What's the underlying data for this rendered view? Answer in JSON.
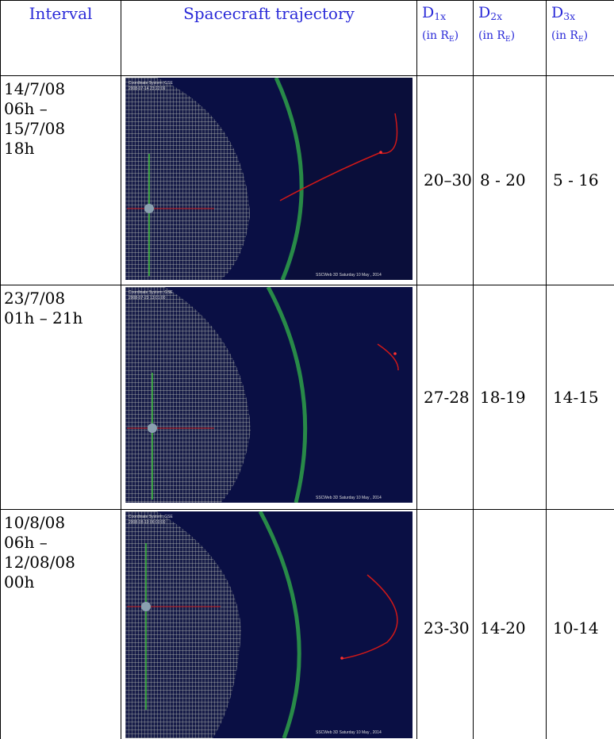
{
  "table": {
    "header": {
      "interval": "Interval",
      "trajectory": "Spacecraft trajectory",
      "distances": [
        {
          "symbol": "D",
          "subscript": "1x",
          "unit_open": "(in R",
          "unit_subscript": "E",
          "unit_close": ")"
        },
        {
          "symbol": "D",
          "subscript": "2x",
          "unit_open": "(in R",
          "unit_subscript": "E",
          "unit_close": ")"
        },
        {
          "symbol": "D",
          "subscript": "3x",
          "unit_open": "(in R",
          "unit_subscript": "E",
          "unit_close": ")"
        }
      ]
    },
    "rows": [
      {
        "interval": [
          "14/7/08",
          "06h –",
          "15/7/08",
          "18h"
        ],
        "image": {
          "coordinate_system": "Coordinate System: GSE",
          "timestamp": "2008-07-14 23:22:09",
          "footer": "SSCWeb 3D  Saturday 10 May , 2014"
        },
        "d1x": "20–30",
        "d2x": "8 - 20",
        "d3x": "5 - 16"
      },
      {
        "interval": [
          "23/7/08",
          "01h – 21h"
        ],
        "image": {
          "coordinate_system": "Coordinate System: GSE",
          "timestamp": "2008-07-23 13:01:00",
          "footer": "SSCWeb 3D  Saturday 10 May , 2014"
        },
        "d1x": "27-28",
        "d2x": "18-19",
        "d3x": "14-15"
      },
      {
        "interval": [
          "10/8/08",
          "06h –",
          "12/08/08",
          "00h"
        ],
        "image": {
          "coordinate_system": "Coordinate System: GSE",
          "timestamp": "2008-08-10 06:00:00",
          "footer": "SSCWeb 3D  Saturday 10 May , 2014"
        },
        "d1x": "23-30",
        "d2x": "14-20",
        "d3x": "10-14"
      }
    ]
  }
}
